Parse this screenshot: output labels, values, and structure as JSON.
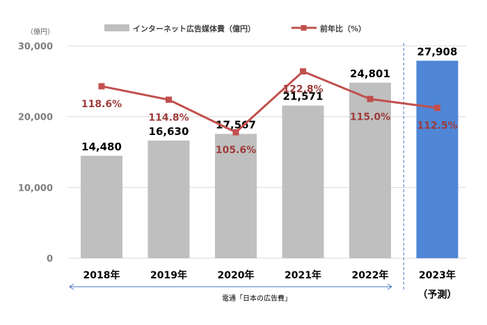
{
  "chart_data": {
    "type": "bar",
    "unit_label": "（億円）",
    "categories": [
      "2018年",
      "2019年",
      "2020年",
      "2021年",
      "2022年",
      "2023年"
    ],
    "forecast_note": "（予測）",
    "ylim": [
      0,
      30000
    ],
    "yticks": [
      "0",
      "10,000",
      "20,000",
      "30,000"
    ],
    "series": [
      {
        "name": "インターネット広告媒体費（億円）",
        "type": "bar",
        "values": [
          14480,
          16630,
          17567,
          21571,
          24801,
          27908
        ],
        "value_labels": [
          "14,480",
          "16,630",
          "17,567",
          "21,571",
          "24,801",
          "27,908"
        ],
        "color": "#bfbfbf",
        "forecast_color": "#4f86d6"
      },
      {
        "name": "前年比（%）",
        "type": "line",
        "values": [
          118.6,
          114.8,
          105.6,
          122.8,
          115.0,
          112.5
        ],
        "value_labels": [
          "118.6%",
          "114.8%",
          "105.6%",
          "122.8%",
          "115.0%",
          "112.5%"
        ],
        "color": "#c0504d",
        "label_color": "#9e3b3b"
      }
    ],
    "source": "電通「日本の広告費」",
    "grid": true,
    "legend": "top"
  }
}
